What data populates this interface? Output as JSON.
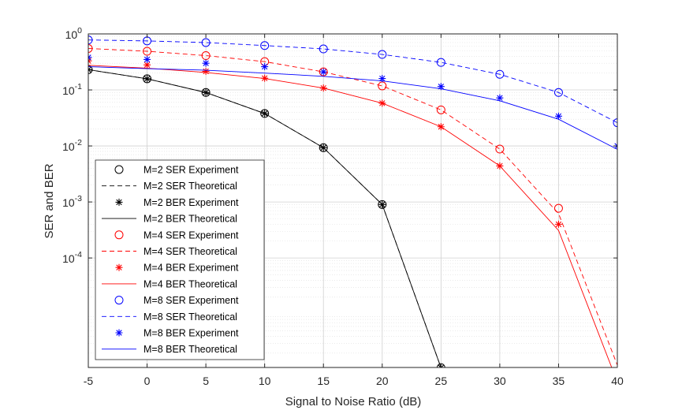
{
  "chart_data": {
    "type": "line",
    "title": "",
    "xlabel": "Signal to Noise Ratio (dB)",
    "ylabel": "SER and BER",
    "xlim": [
      -5,
      40
    ],
    "ylim": [
      1.11e-06,
      1
    ],
    "yscale": "log",
    "grid": true,
    "legend_position": "bottom-left",
    "x_ticks": [
      -5,
      0,
      5,
      10,
      15,
      20,
      25,
      30,
      35,
      40
    ],
    "x_tick_labels": [
      "-5",
      "0",
      "5",
      "10",
      "15",
      "20",
      "25",
      "30",
      "35",
      "40"
    ],
    "y_ticks": [
      {
        "value": 1,
        "base": "10",
        "exp": "0"
      },
      {
        "value": 0.1,
        "base": "10",
        "exp": "-1"
      },
      {
        "value": 0.01,
        "base": "10",
        "exp": "-2"
      },
      {
        "value": 0.001,
        "base": "10",
        "exp": "-3"
      },
      {
        "value": 0.0001,
        "base": "10",
        "exp": "-4"
      }
    ],
    "series": [
      {
        "name": "M=2 SER Experiment",
        "color": "#000000",
        "style": "marker",
        "marker": "circle",
        "x": [
          -5,
          0,
          5,
          10,
          15,
          20,
          25
        ],
        "y": [
          0.23,
          0.158,
          0.09,
          0.038,
          0.0093,
          0.0009,
          1.1e-06
        ]
      },
      {
        "name": "M=2 SER Theoretical",
        "color": "#000000",
        "style": "dashed",
        "x": [
          -5,
          0,
          5,
          10,
          15,
          20,
          25
        ],
        "y": [
          0.23,
          0.158,
          0.09,
          0.038,
          0.0093,
          0.0009,
          1.1e-06
        ]
      },
      {
        "name": "M=2 BER Experiment",
        "color": "#000000",
        "style": "marker",
        "marker": "star",
        "x": [
          -5,
          0,
          5,
          10,
          15,
          20,
          25
        ],
        "y": [
          0.23,
          0.158,
          0.09,
          0.038,
          0.0093,
          0.0009,
          1.1e-06
        ]
      },
      {
        "name": "M=2 BER Theoretical",
        "color": "#000000",
        "style": "solid",
        "x": [
          -5,
          0,
          5,
          10,
          15,
          20,
          25
        ],
        "y": [
          0.23,
          0.158,
          0.09,
          0.038,
          0.0093,
          0.0009,
          1.1e-06
        ]
      },
      {
        "name": "M=4 SER Experiment",
        "color": "#ff0000",
        "style": "marker",
        "marker": "circle",
        "x": [
          -5,
          0,
          5,
          10,
          15,
          20,
          25,
          30,
          35
        ],
        "y": [
          0.55,
          0.49,
          0.41,
          0.32,
          0.21,
          0.118,
          0.044,
          0.0088,
          0.00077
        ]
      },
      {
        "name": "M=4 SER Theoretical",
        "color": "#ff0000",
        "style": "dashed",
        "x": [
          -5,
          0,
          5,
          10,
          15,
          20,
          25,
          30,
          35,
          40
        ],
        "y": [
          0.55,
          0.49,
          0.41,
          0.32,
          0.21,
          0.118,
          0.044,
          0.0088,
          0.00062,
          1.22e-06
        ]
      },
      {
        "name": "M=4 BER Experiment",
        "color": "#ff0000",
        "style": "marker",
        "marker": "star",
        "x": [
          -5,
          0,
          5,
          10,
          15,
          20,
          25,
          30,
          35
        ],
        "y": [
          0.33,
          0.28,
          0.215,
          0.162,
          0.108,
          0.058,
          0.022,
          0.0044,
          0.0004
        ]
      },
      {
        "name": "M=4 BER Theoretical",
        "color": "#ff0000",
        "style": "solid",
        "x": [
          -5,
          0,
          5,
          10,
          15,
          20,
          25,
          30,
          35,
          40
        ],
        "y": [
          0.275,
          0.245,
          0.205,
          0.16,
          0.108,
          0.058,
          0.022,
          0.0044,
          0.00031,
          6.1e-07
        ]
      },
      {
        "name": "M=8 SER Experiment",
        "color": "#0000ff",
        "style": "marker",
        "marker": "circle",
        "x": [
          -5,
          0,
          5,
          10,
          15,
          20,
          25,
          30,
          35,
          40
        ],
        "y": [
          0.78,
          0.75,
          0.7,
          0.62,
          0.54,
          0.43,
          0.31,
          0.19,
          0.09,
          0.026
        ]
      },
      {
        "name": "M=8 SER Theoretical",
        "color": "#0000ff",
        "style": "dashed",
        "x": [
          -5,
          0,
          5,
          10,
          15,
          20,
          25,
          30,
          35,
          40
        ],
        "y": [
          0.78,
          0.75,
          0.7,
          0.62,
          0.54,
          0.43,
          0.31,
          0.19,
          0.09,
          0.026
        ]
      },
      {
        "name": "M=8 BER Experiment",
        "color": "#0000ff",
        "style": "marker",
        "marker": "star",
        "x": [
          -5,
          0,
          5,
          10,
          15,
          20,
          25,
          30,
          35,
          40
        ],
        "y": [
          0.38,
          0.35,
          0.3,
          0.26,
          0.21,
          0.16,
          0.115,
          0.072,
          0.034,
          0.01
        ]
      },
      {
        "name": "M=8 BER Theoretical",
        "color": "#0000ff",
        "style": "solid",
        "x": [
          -5,
          0,
          5,
          10,
          15,
          20,
          25,
          30,
          35,
          40
        ],
        "y": [
          0.26,
          0.24,
          0.225,
          0.2,
          0.175,
          0.145,
          0.105,
          0.064,
          0.03,
          0.0087
        ]
      }
    ]
  }
}
